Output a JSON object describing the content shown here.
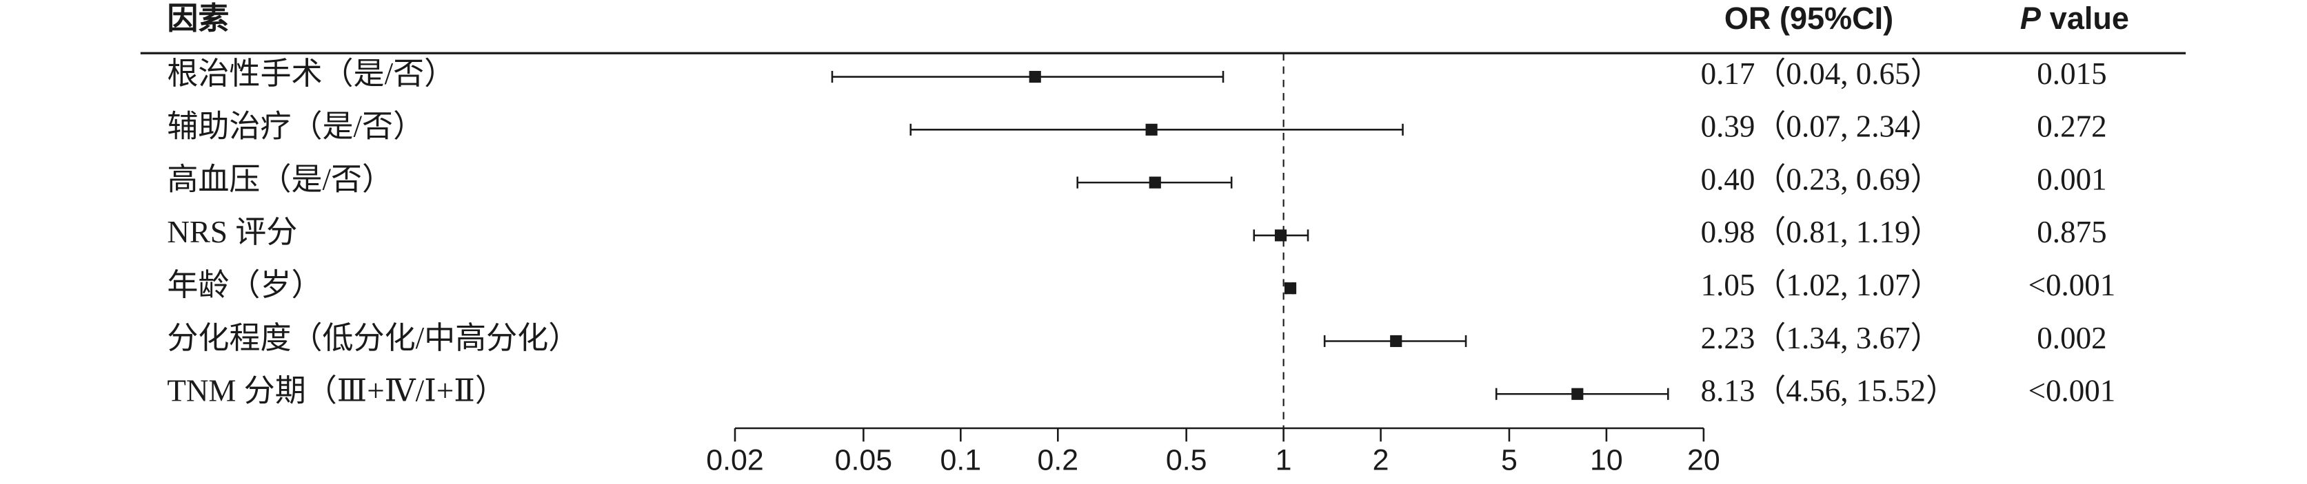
{
  "chart_data": {
    "type": "forest",
    "headers": {
      "factor": "因素",
      "or": "OR (95%CI)",
      "p_italic": "P",
      "p_rest": "value"
    },
    "categories": [
      "根治性手术（是/否）",
      "辅助治疗（是/否）",
      "高血压（是/否）",
      "NRS 评分",
      "年龄（岁）",
      "分化程度（低分化/中高分化）",
      "TNM 分期（Ⅲ+Ⅳ/Ⅰ+Ⅱ）"
    ],
    "values": [
      0.17,
      0.39,
      0.4,
      0.98,
      1.05,
      2.23,
      8.13
    ],
    "lower": [
      0.04,
      0.07,
      0.23,
      0.81,
      1.02,
      1.34,
      4.56
    ],
    "upper": [
      0.65,
      2.34,
      0.69,
      1.19,
      1.07,
      3.67,
      15.52
    ],
    "ci_labels": [
      "0.17（0.04, 0.65）",
      "0.39（0.07, 2.34）",
      "0.40（0.23, 0.69）",
      "0.98（0.81, 1.19）",
      "1.05（1.02, 1.07）",
      "2.23（1.34, 3.67）",
      "8.13（4.56, 15.52）"
    ],
    "p_values": [
      "0.015",
      "0.272",
      "0.001",
      "0.875",
      "<0.001",
      "0.002",
      "<0.001"
    ],
    "xlim": [
      0.02,
      20
    ],
    "xticks": [
      0.02,
      0.05,
      0.1,
      0.2,
      0.5,
      1,
      2,
      5,
      10,
      20
    ],
    "log_scale": true,
    "reference_line": 1,
    "color": "#1a1a1a"
  }
}
